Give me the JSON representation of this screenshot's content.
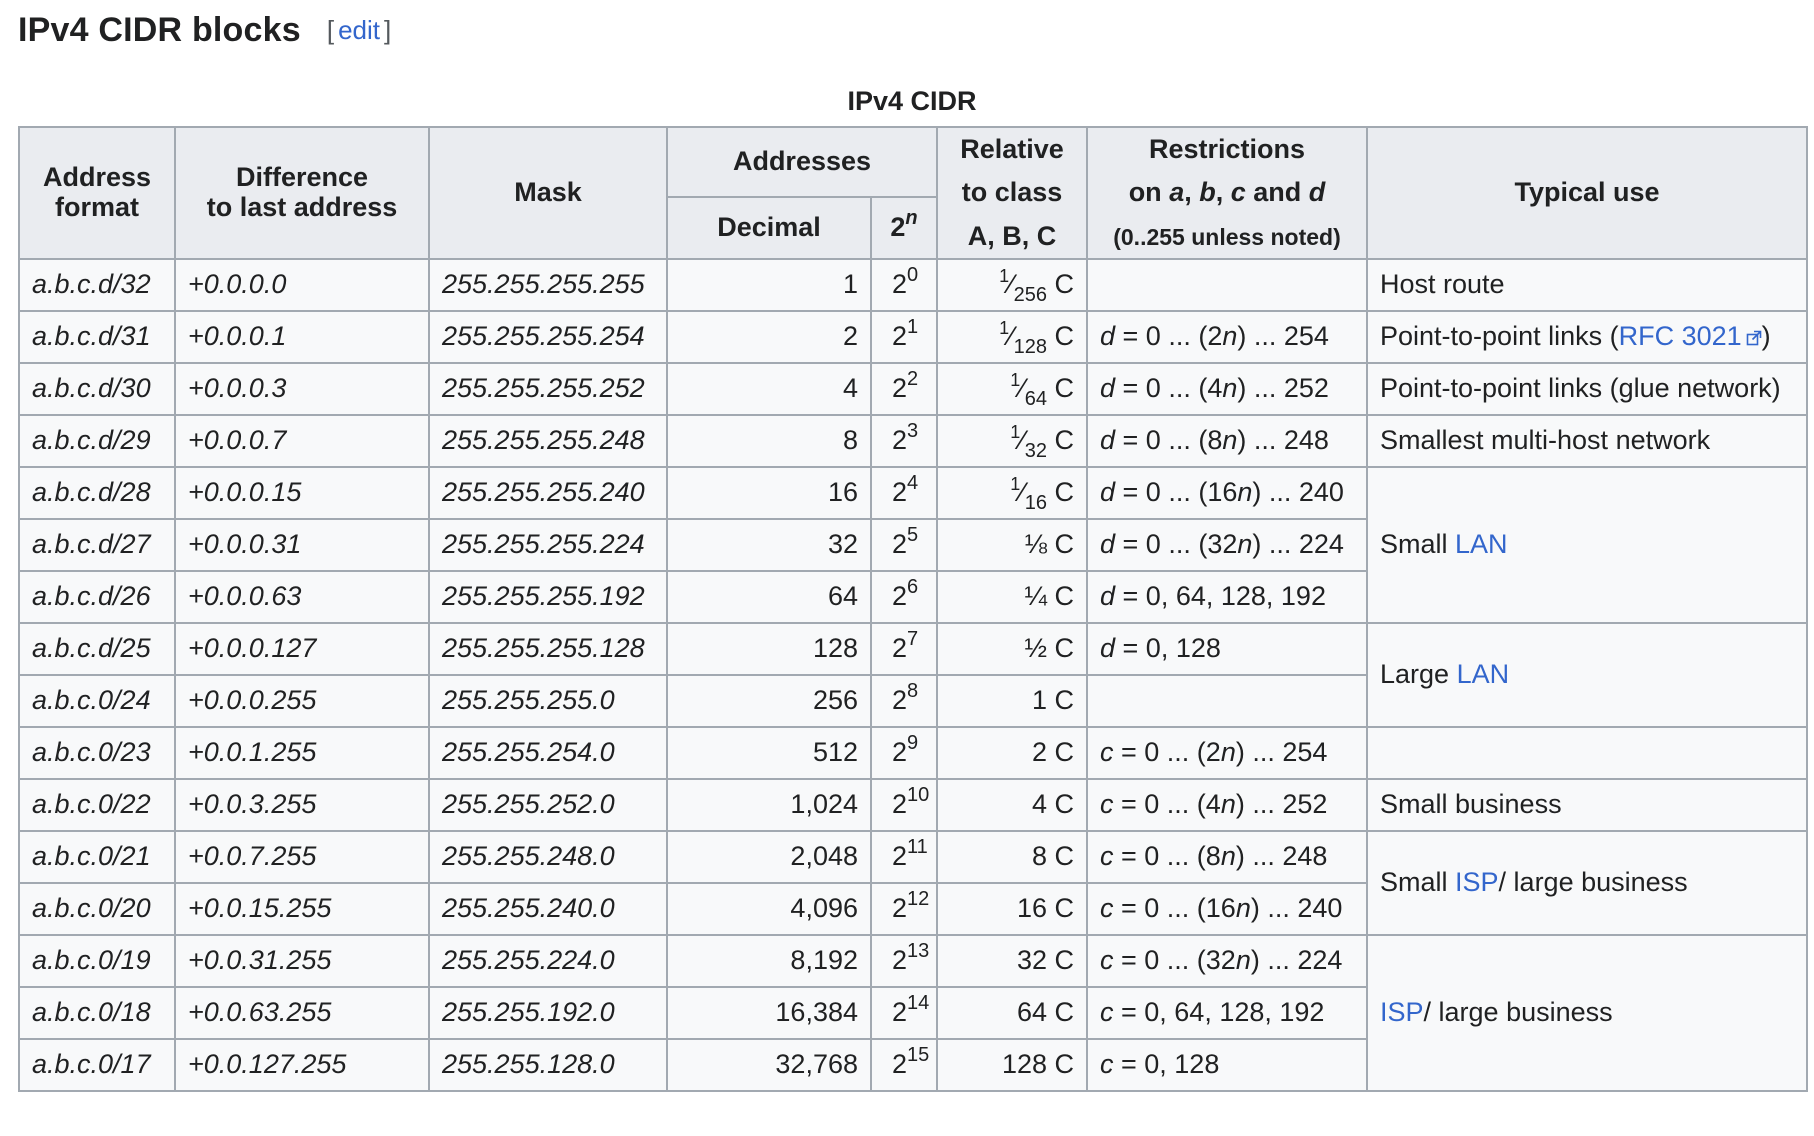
{
  "heading": "IPv4 CIDR blocks",
  "edit": {
    "open": "[",
    "label": "edit",
    "close": "]"
  },
  "caption": "IPv4 CIDR",
  "headers": {
    "address_format": [
      "Address",
      "format"
    ],
    "difference": [
      "Difference",
      "to last address"
    ],
    "mask": "Mask",
    "addresses": "Addresses",
    "decimal": "Decimal",
    "pow_base": "2",
    "pow_exp": "n",
    "relative": [
      "Relative",
      "to class",
      "A, B, C"
    ],
    "restrictions_1": "Restrictions",
    "restrictions_2": {
      "on": "on ",
      "a": "a",
      "c1": ", ",
      "b": "b",
      "c2": ", ",
      "c": "c",
      "and": " and ",
      "d": "d"
    },
    "restrictions_3": "(0..255 unless noted)",
    "typical_use": "Typical use"
  },
  "rows": [
    {
      "format": "a.b.c.d/32",
      "diff": "+0.0.0.0",
      "mask": "255.255.255.255",
      "decimal": "1",
      "exp": "0",
      "rel_num": "1",
      "rel_den": "256",
      "rel_suffix": " C",
      "restr_var": "",
      "restr_rest": ""
    },
    {
      "format": "a.b.c.d/31",
      "diff": "+0.0.0.1",
      "mask": "255.255.255.254",
      "decimal": "2",
      "exp": "1",
      "rel_num": "1",
      "rel_den": "128",
      "rel_suffix": " C",
      "restr_var": "d",
      "restr_a": " = 0 ... (2",
      "restr_n": "n",
      "restr_b": ") ... 254"
    },
    {
      "format": "a.b.c.d/30",
      "diff": "+0.0.0.3",
      "mask": "255.255.255.252",
      "decimal": "4",
      "exp": "2",
      "rel_num": "1",
      "rel_den": "64",
      "rel_suffix": " C",
      "restr_var": "d",
      "restr_a": " = 0 ... (4",
      "restr_n": "n",
      "restr_b": ") ... 252"
    },
    {
      "format": "a.b.c.d/29",
      "diff": "+0.0.0.7",
      "mask": "255.255.255.248",
      "decimal": "8",
      "exp": "3",
      "rel_num": "1",
      "rel_den": "32",
      "rel_suffix": " C",
      "restr_var": "d",
      "restr_a": " = 0 ... (8",
      "restr_n": "n",
      "restr_b": ") ... 248"
    },
    {
      "format": "a.b.c.d/28",
      "diff": "+0.0.0.15",
      "mask": "255.255.255.240",
      "decimal": "16",
      "exp": "4",
      "rel_num": "1",
      "rel_den": "16",
      "rel_suffix": " C",
      "restr_var": "d",
      "restr_a": " = 0 ... (16",
      "restr_n": "n",
      "restr_b": ") ... 240"
    },
    {
      "format": "a.b.c.d/27",
      "diff": "+0.0.0.31",
      "mask": "255.255.255.224",
      "decimal": "32",
      "exp": "5",
      "rel_text": "⅛ C",
      "restr_var": "d",
      "restr_a": " = 0 ... (32",
      "restr_n": "n",
      "restr_b": ") ... 224"
    },
    {
      "format": "a.b.c.d/26",
      "diff": "+0.0.0.63",
      "mask": "255.255.255.192",
      "decimal": "64",
      "exp": "6",
      "rel_text": "¼ C",
      "restr_var": "d",
      "restr_a": " = 0, 64, 128, 192",
      "restr_n": "",
      "restr_b": ""
    },
    {
      "format": "a.b.c.d/25",
      "diff": "+0.0.0.127",
      "mask": "255.255.255.128",
      "decimal": "128",
      "exp": "7",
      "rel_text": "½ C",
      "restr_var": "d",
      "restr_a": " = 0, 128",
      "restr_n": "",
      "restr_b": ""
    },
    {
      "format": "a.b.c.0/24",
      "diff": "+0.0.0.255",
      "mask": "255.255.255.0",
      "decimal": "256",
      "exp": "8",
      "rel_text": "1 C",
      "restr_var": "",
      "restr_a": "",
      "restr_n": "",
      "restr_b": ""
    },
    {
      "format": "a.b.c.0/23",
      "diff": "+0.0.1.255",
      "mask": "255.255.254.0",
      "decimal": "512",
      "exp": "9",
      "rel_text": "2 C",
      "restr_var": "c",
      "restr_a": " = 0 ... (2",
      "restr_n": "n",
      "restr_b": ") ... 254"
    },
    {
      "format": "a.b.c.0/22",
      "diff": "+0.0.3.255",
      "mask": "255.255.252.0",
      "decimal": "1,024",
      "exp": "10",
      "rel_text": "4 C",
      "restr_var": "c",
      "restr_a": " = 0 ... (4",
      "restr_n": "n",
      "restr_b": ") ... 252"
    },
    {
      "format": "a.b.c.0/21",
      "diff": "+0.0.7.255",
      "mask": "255.255.248.0",
      "decimal": "2,048",
      "exp": "11",
      "rel_text": "8 C",
      "restr_var": "c",
      "restr_a": " = 0 ... (8",
      "restr_n": "n",
      "restr_b": ") ... 248"
    },
    {
      "format": "a.b.c.0/20",
      "diff": "+0.0.15.255",
      "mask": "255.255.240.0",
      "decimal": "4,096",
      "exp": "12",
      "rel_text": "16 C",
      "restr_var": "c",
      "restr_a": " = 0 ... (16",
      "restr_n": "n",
      "restr_b": ") ... 240"
    },
    {
      "format": "a.b.c.0/19",
      "diff": "+0.0.31.255",
      "mask": "255.255.224.0",
      "decimal": "8,192",
      "exp": "13",
      "rel_text": "32 C",
      "restr_var": "c",
      "restr_a": " = 0 ... (32",
      "restr_n": "n",
      "restr_b": ") ... 224"
    },
    {
      "format": "a.b.c.0/18",
      "diff": "+0.0.63.255",
      "mask": "255.255.192.0",
      "decimal": "16,384",
      "exp": "14",
      "rel_text": "64 C",
      "restr_var": "c",
      "restr_a": " = 0, 64, 128, 192",
      "restr_n": "",
      "restr_b": ""
    },
    {
      "format": "a.b.c.0/17",
      "diff": "+0.0.127.255",
      "mask": "255.255.128.0",
      "decimal": "32,768",
      "exp": "15",
      "rel_text": "128 C",
      "restr_var": "c",
      "restr_a": " = 0, 128",
      "restr_n": "",
      "restr_b": ""
    }
  ],
  "uses": {
    "host_route": "Host route",
    "ptp_pre": "Point-to-point links (",
    "ptp_link": "RFC 3021",
    "ptp_post": ")",
    "glue": "Point-to-point links (glue network)",
    "smallest": "Smallest multi-host network",
    "small_lan_pre": "Small ",
    "small_lan_link": "LAN",
    "large_lan_pre": "Large ",
    "large_lan_link": "LAN",
    "small_business": "Small business",
    "small_isp_pre": "Small ",
    "small_isp_link": "ISP",
    "small_isp_post": "/ large business",
    "isp_link": "ISP",
    "isp_post": "/ large business"
  },
  "colors": {
    "link": "#3366cc",
    "header_bg": "#eaecf0",
    "cell_bg": "#f8f9fa",
    "border": "#a2a9b1"
  }
}
